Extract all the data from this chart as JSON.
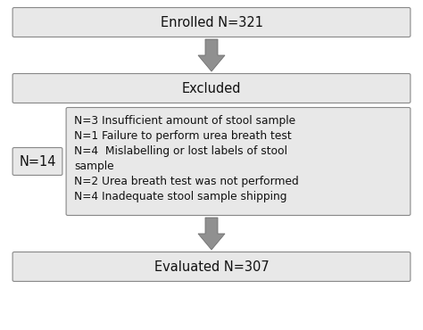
{
  "bg_color": "#ffffff",
  "box_fill": "#e8e8e8",
  "box_edge": "#888888",
  "box_text_color": "#111111",
  "enrolled_text": "Enrolled N=321",
  "excluded_text": "Excluded",
  "n14_text": "N=14",
  "details_text": "N=3 Insufficient amount of stool sample\nN=1 Failure to perform urea breath test\nN=4  Mislabelling or lost labels of stool\nsample\nN=2 Urea breath test was not performed\nN=4 Inadequate stool sample shipping",
  "evaluated_text": "Evaluated N=307",
  "arrow_color": "#909090",
  "arrow_edge_color": "#707070",
  "font_size_main": 10.5,
  "font_size_details": 8.8,
  "fig_w": 4.74,
  "fig_h": 3.7,
  "dpi": 100
}
